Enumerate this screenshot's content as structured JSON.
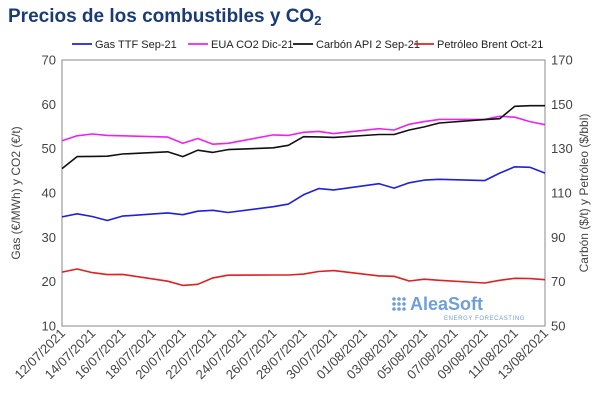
{
  "title_main": "Precios de los combustibles y CO",
  "title_sub": "2",
  "watermark": {
    "brand": "AleaSoft",
    "tagline": "ENERGY FORECASTING"
  },
  "chart_data": {
    "type": "line",
    "title": "Precios de los combustibles y CO2",
    "ylabel_left": "Gas (€/MWh) y CO2 (€/t)",
    "ylabel_right": "Carbón ($/t) y Petróleo ($/bbl)",
    "ylim_left": [
      10,
      70
    ],
    "yticks_left": [
      10,
      20,
      30,
      40,
      50,
      60,
      70
    ],
    "ylim_right": [
      50,
      170
    ],
    "yticks_right": [
      50,
      70,
      90,
      110,
      130,
      150,
      170
    ],
    "grid": false,
    "legend_position": "top",
    "x": [
      "12/07/2021",
      "13/07/2021",
      "14/07/2021",
      "15/07/2021",
      "16/07/2021",
      "19/07/2021",
      "20/07/2021",
      "21/07/2021",
      "22/07/2021",
      "23/07/2021",
      "26/07/2021",
      "27/07/2021",
      "28/07/2021",
      "29/07/2021",
      "30/07/2021",
      "02/08/2021",
      "03/08/2021",
      "04/08/2021",
      "05/08/2021",
      "06/08/2021",
      "09/08/2021",
      "10/08/2021",
      "11/08/2021",
      "12/08/2021",
      "13/08/2021"
    ],
    "x_tick_labels": [
      "12/07/2021",
      "14/07/2021",
      "16/07/2021",
      "18/07/2021",
      "20/07/2021",
      "22/07/2021",
      "24/07/2021",
      "26/07/2021",
      "28/07/2021",
      "30/07/2021",
      "01/08/2021",
      "03/08/2021",
      "05/08/2021",
      "07/08/2021",
      "09/08/2021",
      "11/08/2021",
      "13/08/2021"
    ],
    "x_range": [
      "12/07/2021",
      "13/08/2021"
    ],
    "series": [
      {
        "name": "Gas TTF Sep-21",
        "color": "#1f1fe0",
        "axis": "left",
        "values": [
          34.6,
          35.3,
          34.7,
          33.8,
          34.8,
          35.5,
          35.1,
          35.9,
          36.1,
          35.6,
          36.9,
          37.5,
          39.6,
          41.0,
          40.7,
          42.1,
          41.1,
          42.3,
          42.9,
          43.1,
          42.8,
          44.5,
          45.9,
          45.8,
          44.5
        ]
      },
      {
        "name": "EUA CO2 Dic-21",
        "color": "#ee22ee",
        "axis": "left",
        "values": [
          51.8,
          52.9,
          53.3,
          53.0,
          52.9,
          52.6,
          51.2,
          52.3,
          51.0,
          51.2,
          53.1,
          53.0,
          53.7,
          53.9,
          53.4,
          54.5,
          54.2,
          55.5,
          56.1,
          56.6,
          56.6,
          57.3,
          57.1,
          56.1,
          55.4
        ]
      },
      {
        "name": "Carbón API 2 Sep-21",
        "color": "#111111",
        "axis": "right",
        "values": [
          121.0,
          126.4,
          126.5,
          126.6,
          127.6,
          128.6,
          126.4,
          129.3,
          128.3,
          129.6,
          130.4,
          131.5,
          135.4,
          135.3,
          135.1,
          136.4,
          136.4,
          138.4,
          139.8,
          141.6,
          143.1,
          143.5,
          149.1,
          149.4,
          149.4
        ]
      },
      {
        "name": "Petróleo Brent Oct-21",
        "color": "#e02020",
        "axis": "right",
        "values": [
          74.3,
          75.7,
          74.1,
          73.2,
          73.3,
          70.2,
          68.3,
          68.8,
          71.7,
          72.9,
          73.0,
          73.0,
          73.4,
          74.6,
          75.0,
          72.6,
          72.4,
          70.3,
          71.1,
          70.6,
          69.4,
          70.6,
          71.5,
          71.4,
          70.9
        ]
      }
    ]
  }
}
